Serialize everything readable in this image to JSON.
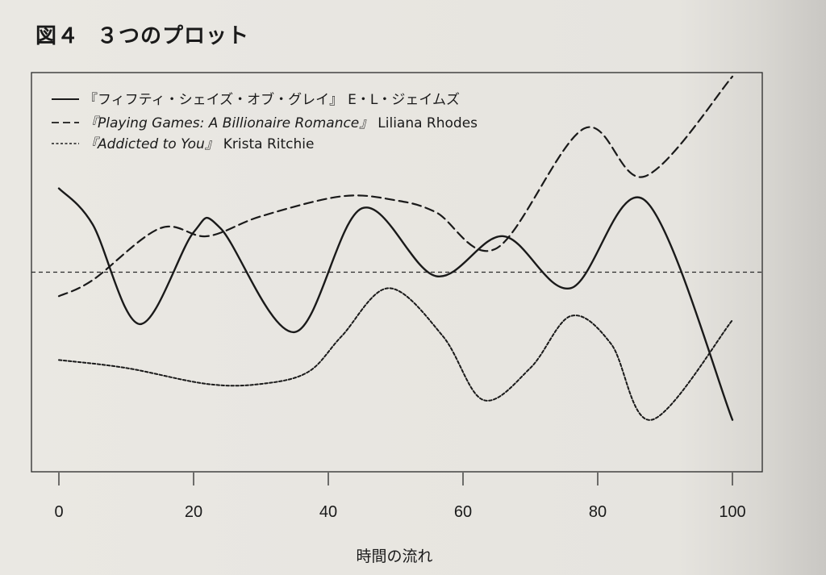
{
  "figure": {
    "number": "図４",
    "title": "３つのプロット"
  },
  "chart_data": {
    "type": "line",
    "xlabel": "時間の流れ",
    "ylabel": "",
    "xlim": [
      0,
      100
    ],
    "ylim": [
      0,
      10
    ],
    "x_ticks": [
      0,
      20,
      40,
      60,
      80,
      100
    ],
    "x_tick_labels": [
      "0",
      "20",
      "40",
      "60",
      "80",
      "100"
    ],
    "grid": false,
    "legend_position": "top-left",
    "reference_line": {
      "y": 5.0,
      "style": "dashed"
    },
    "series": [
      {
        "name": "『フィフティ・シェイズ・オブ・グレイ』",
        "author": "E・L・ジェイムズ",
        "line_style": "solid",
        "x": [
          0,
          5,
          12,
          20,
          24,
          35,
          45,
          56,
          66,
          76,
          87,
          100
        ],
        "y": [
          7.1,
          6.2,
          3.7,
          6.0,
          6.1,
          3.5,
          6.6,
          4.9,
          5.9,
          4.6,
          6.8,
          1.3
        ]
      },
      {
        "name": "『Playing Games: A Billionaire Romance』",
        "author": "Liliana Rhodes",
        "line_style": "dashed",
        "x": [
          0,
          5,
          15,
          22,
          30,
          42,
          50,
          56,
          65,
          78,
          87,
          100
        ],
        "y": [
          4.4,
          4.8,
          6.1,
          5.9,
          6.4,
          6.9,
          6.8,
          6.5,
          5.6,
          8.6,
          7.4,
          9.9
        ]
      },
      {
        "name": "『Addicted to You』",
        "author": "Krista Ritchie",
        "line_style": "dotted",
        "x": [
          0,
          10,
          22,
          30,
          37,
          42,
          49,
          57,
          63,
          70,
          76,
          82,
          88,
          100
        ],
        "y": [
          2.8,
          2.6,
          2.2,
          2.2,
          2.5,
          3.4,
          4.6,
          3.4,
          1.8,
          2.6,
          3.9,
          3.2,
          1.3,
          3.8
        ]
      }
    ]
  }
}
